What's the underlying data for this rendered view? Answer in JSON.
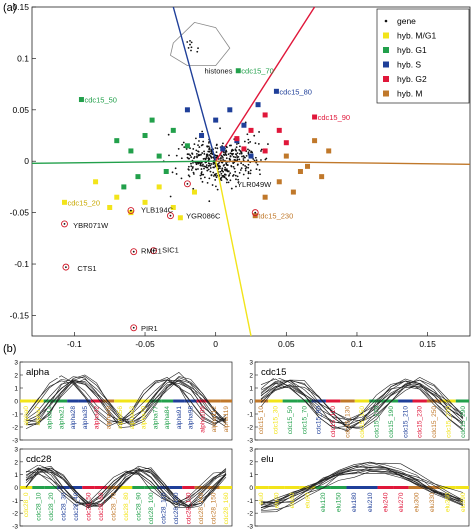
{
  "panels": {
    "a": {
      "label": "(a)"
    },
    "b": {
      "label": "(b)"
    }
  },
  "colors": {
    "gene": "#111111",
    "MG1": "#f2e41a",
    "G1": "#22a04b",
    "S": "#1f3f99",
    "G2": "#e0173a",
    "M": "#c0782a"
  },
  "chart_data": [
    {
      "type": "scatter",
      "xlim": [
        -0.13,
        0.18
      ],
      "ylim": [
        -0.17,
        0.15
      ],
      "xticks": [
        -0.1,
        -0.05,
        0,
        0.05,
        0.1,
        0.15
      ],
      "yticks": [
        0.15,
        0.1,
        0.05,
        0,
        -0.05,
        -0.1,
        -0.15
      ],
      "xtick_labels": [
        "-0.1",
        "-0.05",
        "0",
        "0.05",
        "0.1",
        "0.15"
      ],
      "ytick_labels": [
        "0.15",
        "0.1",
        "0.05",
        "0",
        "-0.05",
        "-0.1",
        "-0.15"
      ],
      "legend": {
        "placement": "top-right",
        "entries": [
          {
            "name": "gene",
            "color": "#111111",
            "marker": "dot"
          },
          {
            "name": "hyb. M/G1",
            "color": "#f2e41a",
            "marker": "square"
          },
          {
            "name": "hyb. G1",
            "color": "#22a04b",
            "marker": "square"
          },
          {
            "name": "hyb. S",
            "color": "#1f3f99",
            "marker": "square"
          },
          {
            "name": "hyb. G2",
            "color": "#e0173a",
            "marker": "square"
          },
          {
            "name": "hyb. M",
            "color": "#c0782a",
            "marker": "square"
          }
        ]
      },
      "axes_lines": [
        {
          "color": "#1f3f99",
          "x": [
            0,
            -0.03
          ],
          "y": [
            0,
            0.15
          ]
        },
        {
          "color": "#e0173a",
          "x": [
            0,
            0.07
          ],
          "y": [
            0,
            0.15
          ]
        },
        {
          "color": "#c0782a",
          "x": [
            0,
            0.18
          ],
          "y": [
            0,
            -0.003
          ]
        },
        {
          "color": "#f2e41a",
          "x": [
            0,
            0.025
          ],
          "y": [
            0,
            -0.17
          ]
        },
        {
          "color": "#22a04b",
          "x": [
            0,
            -0.13
          ],
          "y": [
            0,
            -0.002
          ]
        }
      ],
      "gene_labels": [
        {
          "text": "histones",
          "x": -0.01,
          "y": 0.088
        },
        {
          "text": "cdc15_70",
          "x": 0.016,
          "y": 0.088
        },
        {
          "text": "cdc15_80",
          "x": 0.043,
          "y": 0.068
        },
        {
          "text": "cdc15_50",
          "x": -0.095,
          "y": 0.06
        },
        {
          "text": "cdc15_90",
          "x": 0.07,
          "y": 0.043
        },
        {
          "text": "YLR049W",
          "x": 0.013,
          "y": -0.022
        },
        {
          "text": "cdc15_20",
          "x": -0.107,
          "y": -0.04
        },
        {
          "text": "YLB194C",
          "x": -0.055,
          "y": -0.047
        },
        {
          "text": "YGR086C",
          "x": -0.023,
          "y": -0.053
        },
        {
          "text": "tdc15_230",
          "x": 0.028,
          "y": -0.053
        },
        {
          "text": "YBR071W",
          "x": -0.103,
          "y": -0.062
        },
        {
          "text": "RME1",
          "x": -0.055,
          "y": -0.087
        },
        {
          "text": "SIC1",
          "x": -0.04,
          "y": -0.086
        },
        {
          "text": "CTS1",
          "x": -0.1,
          "y": -0.104
        },
        {
          "text": "PIR1",
          "x": -0.055,
          "y": -0.162
        }
      ],
      "circled_points": [
        {
          "x": -0.02,
          "y": -0.022
        },
        {
          "x": -0.06,
          "y": -0.048
        },
        {
          "x": -0.032,
          "y": -0.053
        },
        {
          "x": 0.028,
          "y": -0.05
        },
        {
          "x": -0.107,
          "y": -0.061
        },
        {
          "x": -0.058,
          "y": -0.088
        },
        {
          "x": -0.044,
          "y": -0.087
        },
        {
          "x": -0.106,
          "y": -0.103
        },
        {
          "x": -0.058,
          "y": -0.162
        }
      ],
      "hybridizations": [
        {
          "phase": "MG1",
          "x": -0.107,
          "y": -0.04
        },
        {
          "phase": "MG1",
          "x": -0.085,
          "y": -0.02
        },
        {
          "phase": "MG1",
          "x": -0.07,
          "y": -0.035
        },
        {
          "phase": "MG1",
          "x": -0.05,
          "y": -0.04
        },
        {
          "phase": "MG1",
          "x": -0.03,
          "y": -0.045
        },
        {
          "phase": "MG1",
          "x": -0.015,
          "y": -0.03
        },
        {
          "phase": "MG1",
          "x": -0.06,
          "y": -0.05
        },
        {
          "phase": "MG1",
          "x": -0.04,
          "y": -0.025
        },
        {
          "phase": "MG1",
          "x": -0.025,
          "y": -0.055
        },
        {
          "phase": "MG1",
          "x": -0.075,
          "y": -0.045
        },
        {
          "phase": "G1",
          "x": -0.095,
          "y": 0.06
        },
        {
          "phase": "G1",
          "x": -0.07,
          "y": 0.02
        },
        {
          "phase": "G1",
          "x": -0.06,
          "y": 0.01
        },
        {
          "phase": "G1",
          "x": -0.05,
          "y": 0.025
        },
        {
          "phase": "G1",
          "x": -0.04,
          "y": 0.005
        },
        {
          "phase": "G1",
          "x": -0.03,
          "y": 0.03
        },
        {
          "phase": "G1",
          "x": -0.055,
          "y": -0.015
        },
        {
          "phase": "G1",
          "x": -0.065,
          "y": -0.025
        },
        {
          "phase": "G1",
          "x": -0.035,
          "y": -0.01
        },
        {
          "phase": "G1",
          "x": -0.02,
          "y": 0.015
        },
        {
          "phase": "G1",
          "x": 0.016,
          "y": 0.088
        },
        {
          "phase": "G1",
          "x": -0.045,
          "y": 0.04
        },
        {
          "phase": "S",
          "x": 0.043,
          "y": 0.068
        },
        {
          "phase": "S",
          "x": 0.01,
          "y": 0.05
        },
        {
          "phase": "S",
          "x": 0.02,
          "y": 0.035
        },
        {
          "phase": "S",
          "x": 0.0,
          "y": 0.04
        },
        {
          "phase": "S",
          "x": -0.01,
          "y": 0.025
        },
        {
          "phase": "S",
          "x": 0.015,
          "y": 0.02
        },
        {
          "phase": "S",
          "x": 0.03,
          "y": 0.055
        },
        {
          "phase": "S",
          "x": -0.02,
          "y": 0.05
        },
        {
          "phase": "S",
          "x": 0.005,
          "y": 0.012
        },
        {
          "phase": "S",
          "x": 0.025,
          "y": 0.005
        },
        {
          "phase": "G2",
          "x": 0.07,
          "y": 0.043
        },
        {
          "phase": "G2",
          "x": 0.035,
          "y": 0.045
        },
        {
          "phase": "G2",
          "x": 0.045,
          "y": 0.03
        },
        {
          "phase": "G2",
          "x": 0.025,
          "y": 0.03
        },
        {
          "phase": "G2",
          "x": 0.015,
          "y": 0.022
        },
        {
          "phase": "G2",
          "x": 0.05,
          "y": 0.018
        },
        {
          "phase": "G2",
          "x": 0.035,
          "y": 0.01
        },
        {
          "phase": "G2",
          "x": 0.02,
          "y": 0.012
        },
        {
          "phase": "M",
          "x": 0.028,
          "y": -0.053
        },
        {
          "phase": "M",
          "x": 0.05,
          "y": 0.005
        },
        {
          "phase": "M",
          "x": 0.06,
          "y": -0.01
        },
        {
          "phase": "M",
          "x": 0.07,
          "y": 0.02
        },
        {
          "phase": "M",
          "x": 0.08,
          "y": 0.01
        },
        {
          "phase": "M",
          "x": 0.045,
          "y": -0.02
        },
        {
          "phase": "M",
          "x": 0.035,
          "y": -0.035
        },
        {
          "phase": "M",
          "x": 0.055,
          "y": -0.03
        },
        {
          "phase": "M",
          "x": 0.065,
          "y": -0.005
        },
        {
          "phase": "M",
          "x": 0.075,
          "y": -0.015
        }
      ]
    },
    {
      "type": "line",
      "title": "alpha",
      "ylim": [
        -3,
        3
      ],
      "yticks": [
        3,
        2,
        1,
        0,
        -1,
        -2,
        -3
      ],
      "categories": [
        "alpha0",
        "alpha7",
        "alpha14",
        "alpha21",
        "alpha28",
        "alpha35",
        "alpha42",
        "alpha49",
        "alpha56",
        "alpha63",
        "alpha70",
        "alpha77",
        "alpha84",
        "alpha91",
        "alpha98",
        "alpha105",
        "alpha112",
        "alpha119"
      ],
      "category_phases": [
        "MG1",
        "MG1",
        "G1",
        "G1",
        "S",
        "S",
        "G2",
        "M",
        "MG1",
        "MG1",
        "MG1",
        "G1",
        "G1",
        "S",
        "S",
        "G2",
        "M",
        "M"
      ],
      "series_count": 12
    },
    {
      "type": "line",
      "title": "cdc15",
      "ylim": [
        -3,
        3
      ],
      "yticks": [
        3,
        2,
        1,
        0,
        -1,
        -2,
        -3
      ],
      "categories": [
        "cdc15_10",
        "cdc15_30",
        "cdc15_50",
        "cdc15_70",
        "cdc15_90",
        "cdc15_110",
        "cdc15_130",
        "cdc15_150",
        "cdc15_170",
        "cdc15_190",
        "cdc15_210",
        "cdc15_230",
        "cdc15_250",
        "cdc15_270",
        "cdc15_290"
      ],
      "category_phases": [
        "M",
        "MG1",
        "G1",
        "G1",
        "S",
        "G2",
        "M",
        "MG1",
        "G1",
        "G1",
        "S",
        "G2",
        "M",
        "MG1",
        "G1"
      ],
      "series_count": 12
    },
    {
      "type": "line",
      "title": "cdc28",
      "ylim": [
        -3,
        3
      ],
      "yticks": [
        3,
        2,
        1,
        0,
        -1,
        -2,
        -3
      ],
      "categories": [
        "cdc28_0",
        "cdc28_10",
        "cdc28_20",
        "cdc28_30",
        "cdc28_40",
        "cdc28_50",
        "cdc28_60",
        "cdc28_70",
        "cdc28_80",
        "cdc28_90",
        "cdc28_100",
        "cdc28_110",
        "cdc28_120",
        "cdc28_130",
        "cdc28_140",
        "cdc28_150",
        "cdc28_160"
      ],
      "category_phases": [
        "MG1",
        "G1",
        "G1",
        "S",
        "S",
        "G2",
        "G2",
        "M",
        "MG1",
        "G1",
        "G1",
        "S",
        "S",
        "G2",
        "M",
        "M",
        "MG1"
      ],
      "series_count": 12
    },
    {
      "type": "line",
      "title": "elu",
      "ylim": [
        -3,
        3
      ],
      "yticks": [
        3,
        2,
        1,
        0,
        -1,
        -2,
        -3
      ],
      "categories": [
        "elu0",
        "elu30",
        "elu60",
        "elu90",
        "elu120",
        "elu150",
        "elu180",
        "elu210",
        "elu240",
        "elu270",
        "elu300",
        "elu330",
        "elu360",
        "elu390"
      ],
      "category_phases": [
        "MG1",
        "MG1",
        "MG1",
        "MG1",
        "G1",
        "G1",
        "S",
        "S",
        "G2",
        "G2",
        "M",
        "M",
        "MG1",
        "MG1"
      ],
      "series_count": 12
    }
  ]
}
